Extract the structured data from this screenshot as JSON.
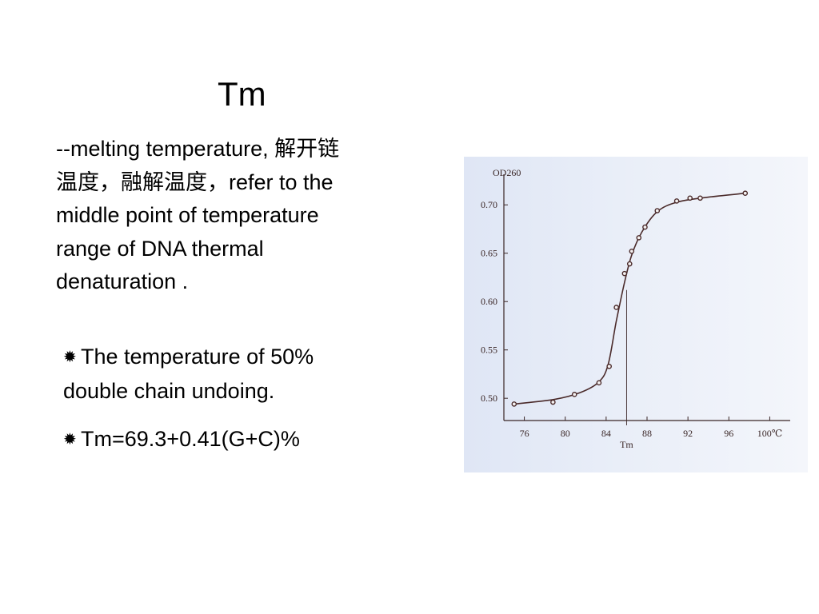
{
  "slide": {
    "title": "Tm",
    "definition": "--melting temperature, 解开链\n温度，融解温度，refer to   the\nmiddle point of  temperature\nrange of DNA thermal\ndenaturation .",
    "bullets": [
      {
        "icon": "star-burst-icon",
        "symbol": "✹",
        "text": "The temperature of 50%\ndouble chain undoing."
      },
      {
        "icon": "star-burst-icon",
        "symbol": "✹",
        "text": "Tm=69.3+0.41(G+C)%"
      }
    ]
  },
  "chart_data": {
    "type": "line",
    "title": "",
    "ylabel": "OD260",
    "xlabel": "",
    "x_ticks": [
      76,
      80,
      84,
      88,
      92,
      96,
      100
    ],
    "x_tick_labels": [
      "76",
      "80",
      "84",
      "88",
      "92",
      "96",
      "100℃"
    ],
    "y_ticks": [
      0.5,
      0.55,
      0.6,
      0.65,
      0.7
    ],
    "y_tick_labels": [
      "0.50",
      "0.55",
      "0.60",
      "0.65",
      "0.70"
    ],
    "xlim": [
      74,
      102
    ],
    "ylim": [
      0.477,
      0.725
    ],
    "tm_marker": {
      "x": 86.0,
      "label": "Tm"
    },
    "series": [
      {
        "points": [
          {
            "x": 75.0,
            "y": 0.494
          },
          {
            "x": 78.8,
            "y": 0.496
          },
          {
            "x": 80.9,
            "y": 0.504
          },
          {
            "x": 83.3,
            "y": 0.516
          },
          {
            "x": 84.3,
            "y": 0.533
          },
          {
            "x": 85.0,
            "y": 0.594
          },
          {
            "x": 85.8,
            "y": 0.629
          },
          {
            "x": 86.3,
            "y": 0.639
          },
          {
            "x": 86.5,
            "y": 0.652
          },
          {
            "x": 87.2,
            "y": 0.666
          },
          {
            "x": 87.8,
            "y": 0.677
          },
          {
            "x": 89.0,
            "y": 0.694
          },
          {
            "x": 90.9,
            "y": 0.704
          },
          {
            "x": 92.2,
            "y": 0.707
          },
          {
            "x": 93.2,
            "y": 0.707
          },
          {
            "x": 97.6,
            "y": 0.712
          }
        ],
        "curve": [
          {
            "x": 75.0,
            "y": 0.494
          },
          {
            "x": 79.0,
            "y": 0.499
          },
          {
            "x": 81.5,
            "y": 0.506
          },
          {
            "x": 83.3,
            "y": 0.517
          },
          {
            "x": 84.2,
            "y": 0.535
          },
          {
            "x": 85.0,
            "y": 0.58
          },
          {
            "x": 85.8,
            "y": 0.62
          },
          {
            "x": 86.5,
            "y": 0.648
          },
          {
            "x": 87.5,
            "y": 0.672
          },
          {
            "x": 89.0,
            "y": 0.693
          },
          {
            "x": 91.0,
            "y": 0.703
          },
          {
            "x": 94.0,
            "y": 0.708
          },
          {
            "x": 97.6,
            "y": 0.712
          }
        ]
      }
    ],
    "colors": {
      "line": "#4a2a2a",
      "axis": "#3a2626",
      "panel": "#e6ecf7"
    }
  }
}
